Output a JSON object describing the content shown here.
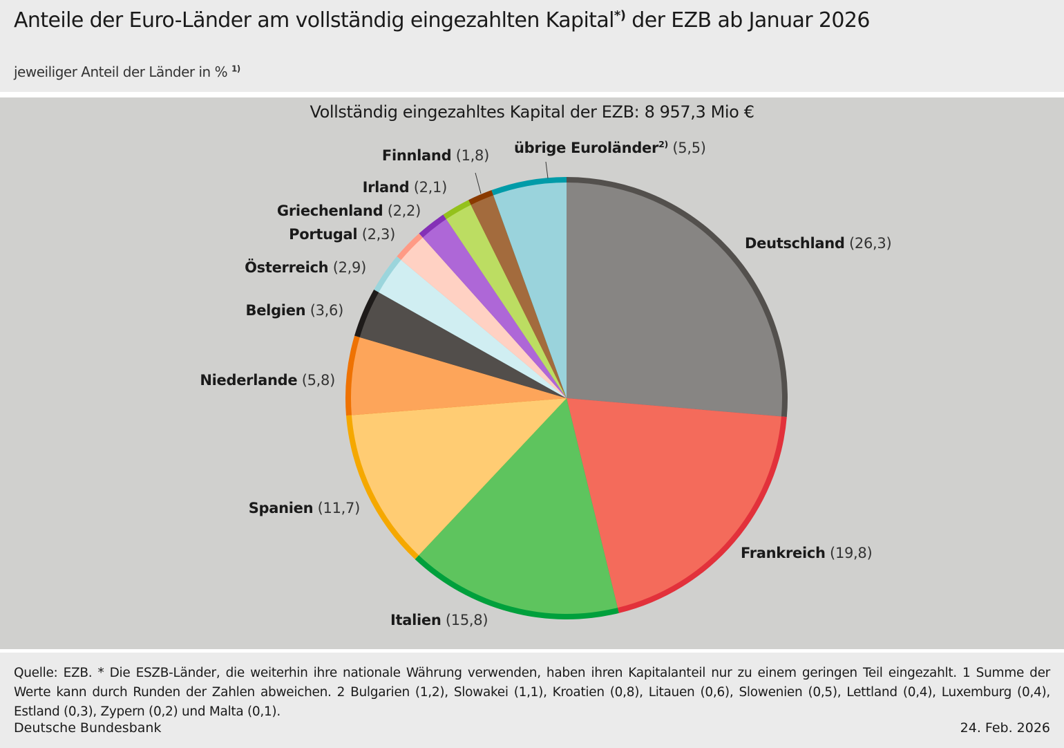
{
  "header": {
    "title": "Anteile der Euro-Länder am vollständig eingezahlten Kapital",
    "title_sup": "*)",
    "title_end": " der EZB ab Januar 2026",
    "subtitle": "jeweiliger Anteil der Länder in %",
    "subtitle_sup": "1)"
  },
  "chart_data": {
    "type": "pie",
    "title": "Vollständig eingezahltes Kapital der EZB: 8 957,3 Mio €",
    "unit": "%",
    "start": "12 o'clock, clockwise",
    "slices": [
      {
        "label": "Deutschland",
        "value": 26.3,
        "value_text": "(26,3)",
        "fill": "#878583",
        "rim": "#53504d"
      },
      {
        "label": "Frankreich",
        "value": 19.8,
        "value_text": "(19,8)",
        "fill": "#f46b5b",
        "rim": "#e2313b"
      },
      {
        "label": "Italien",
        "value": 15.8,
        "value_text": "(15,8)",
        "fill": "#5ec45e",
        "rim": "#00a03c"
      },
      {
        "label": "Spanien",
        "value": 11.7,
        "value_text": "(11,7)",
        "fill": "#ffcc73",
        "rim": "#f5a800"
      },
      {
        "label": "Niederlande",
        "value": 5.8,
        "value_text": "(5,8)",
        "fill": "#fda55a",
        "rim": "#ee7203"
      },
      {
        "label": "Belgien",
        "value": 3.6,
        "value_text": "(3,6)",
        "fill": "#524e4b",
        "rim": "#1e1b1a"
      },
      {
        "label": "Österreich",
        "value": 2.9,
        "value_text": "(2,9)",
        "fill": "#d0eef2",
        "rim": "#9bd5dc"
      },
      {
        "label": "Portugal",
        "value": 2.3,
        "value_text": "(2,3)",
        "fill": "#ffd1c3",
        "rim": "#ff9a85"
      },
      {
        "label": "Griechenland",
        "value": 2.2,
        "value_text": "(2,2)",
        "fill": "#ae67d7",
        "rim": "#8430b6"
      },
      {
        "label": "Irland",
        "value": 2.1,
        "value_text": "(2,1)",
        "fill": "#bcdd62",
        "rim": "#94c11c"
      },
      {
        "label": "Finnland",
        "value": 1.8,
        "value_text": "(1,8)",
        "fill": "#a36b3d",
        "rim": "#8a3a00"
      },
      {
        "label": "übrige Euroländer",
        "label_sup": "2)",
        "value": 5.5,
        "value_text": "(5,5)",
        "fill": "#9ad3dc",
        "rim": "#009ba8"
      }
    ]
  },
  "footer": {
    "note": "Quelle: EZB. * Die ESZB-Länder, die weiterhin ihre nationale Währung verwenden, haben ihren Kapitalanteil nur zu einem geringen Teil eingezahlt. 1 Summe der Werte kann durch Runden der Zahlen abweichen. 2 Bulgarien (1,2), Slowakei (1,1), Kroatien (0,8), Litauen (0,6), Slowenien (0,5), Lettland (0,4), Luxemburg (0,4), Estland (0,3), Zypern (0,2) und Malta (0,1).",
    "source": "Deutsche Bundesbank",
    "date": "24. Feb. 2026"
  }
}
